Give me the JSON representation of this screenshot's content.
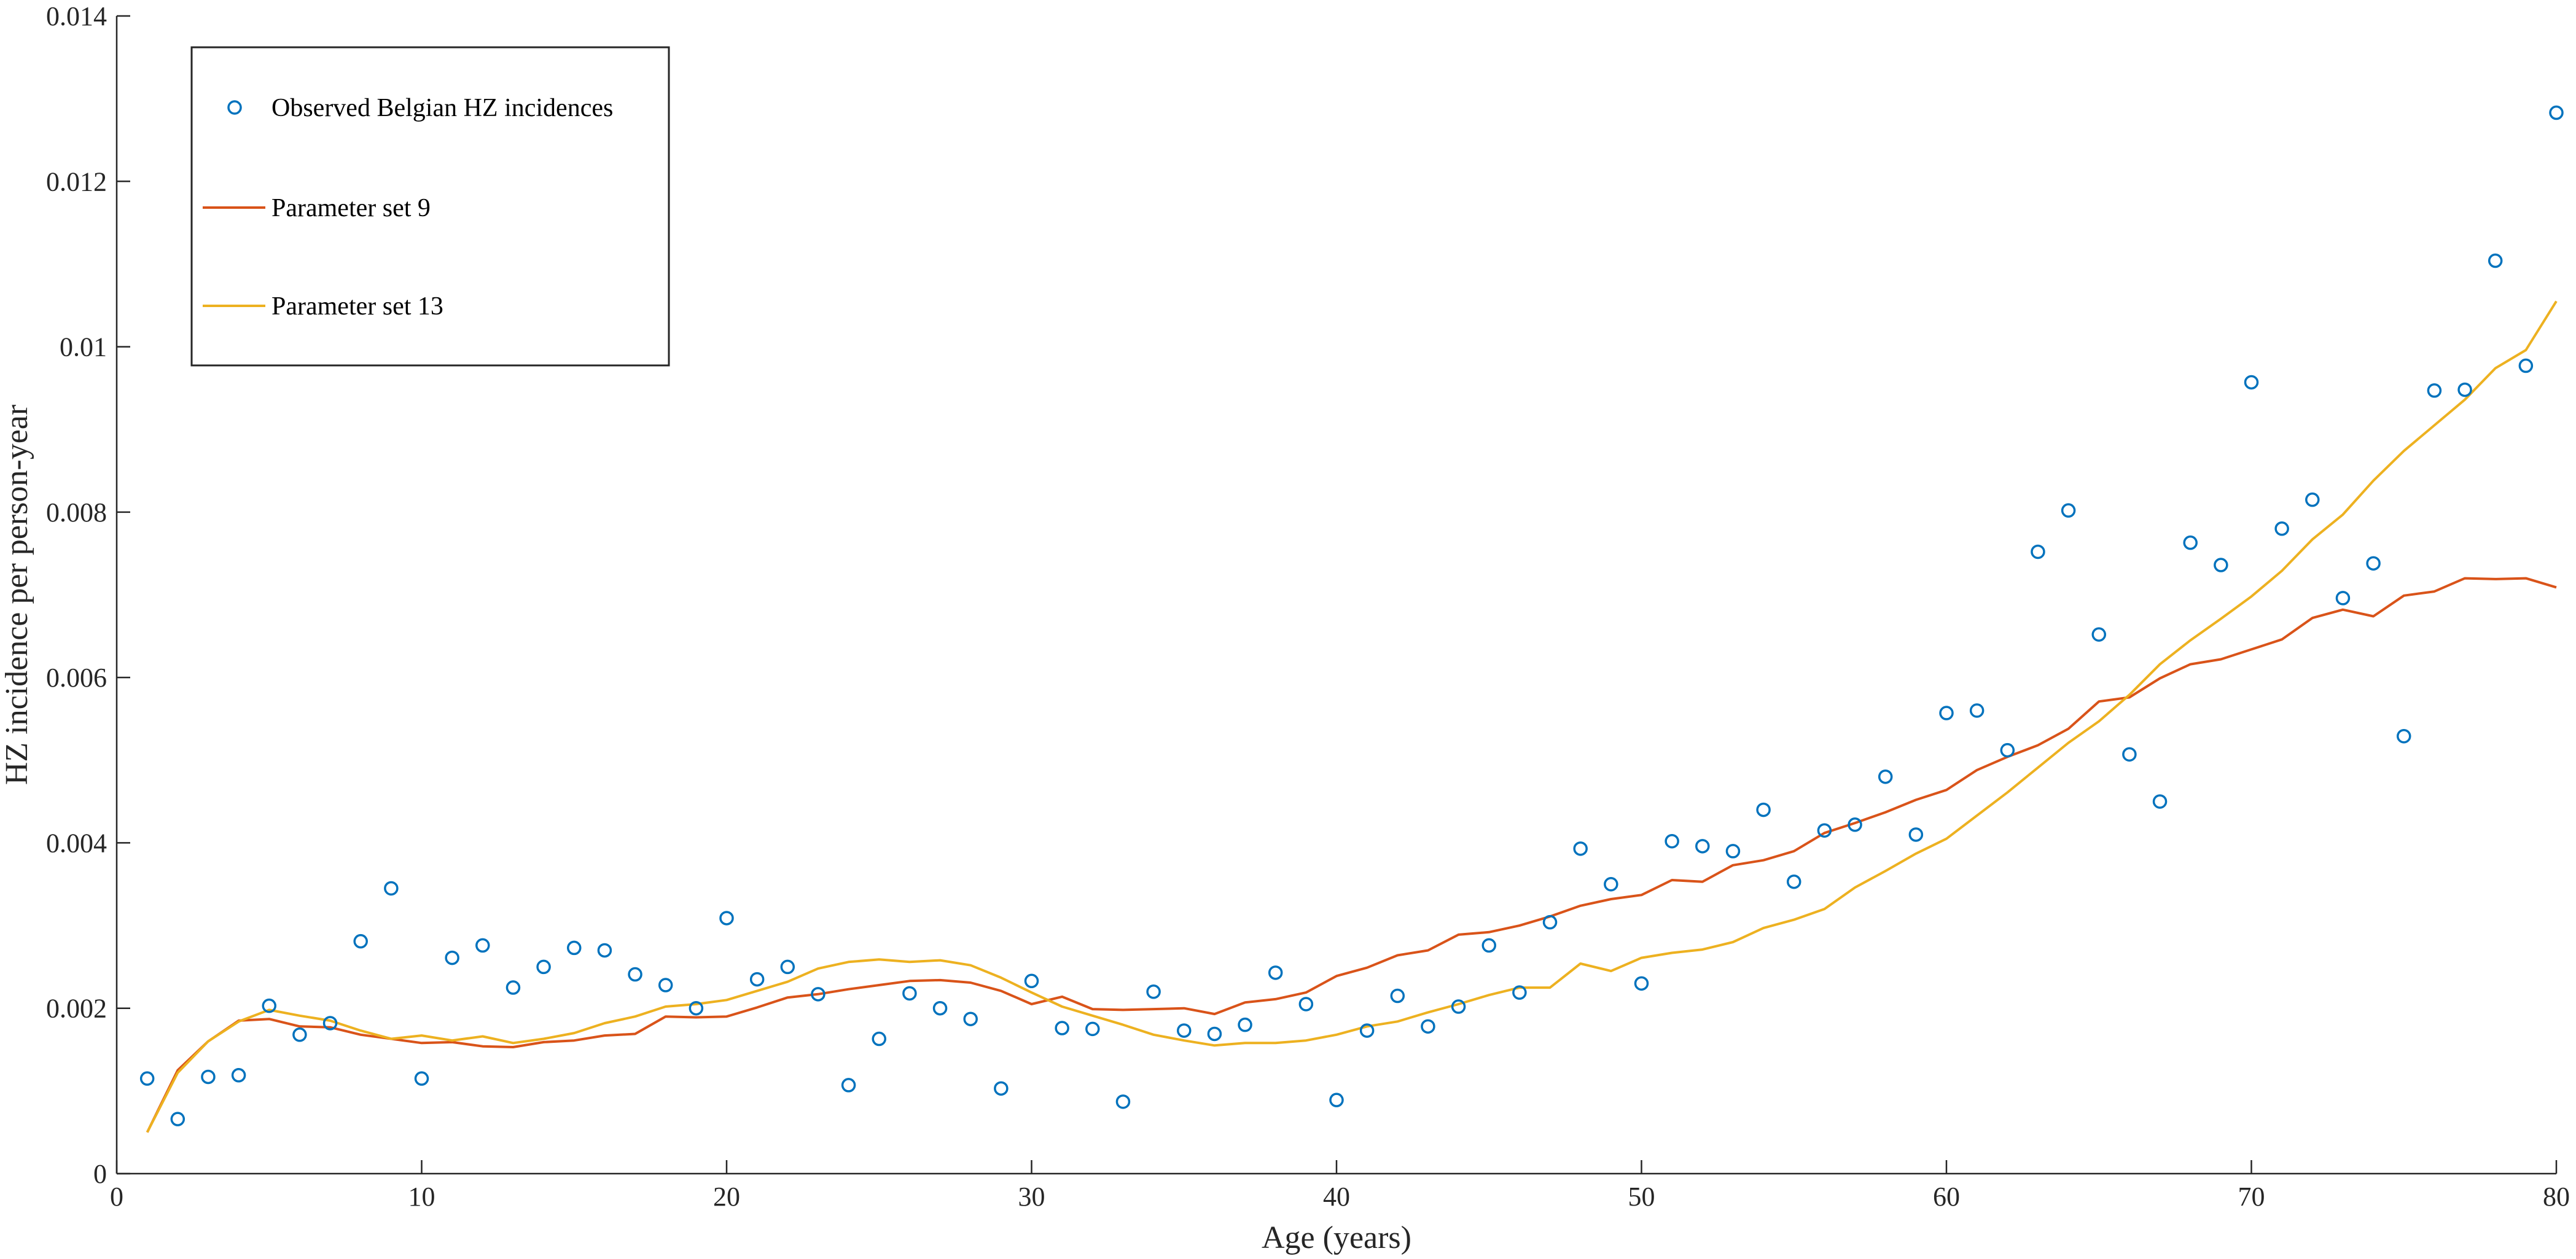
{
  "chart_data": {
    "type": "line",
    "xlabel": "Age (years)",
    "ylabel": "HZ incidence per person-year",
    "xlim": [
      0,
      80
    ],
    "ylim": [
      0,
      0.014
    ],
    "x_ticks": [
      0,
      10,
      20,
      30,
      40,
      50,
      60,
      70,
      80
    ],
    "x_tick_labels": [
      "0",
      "10",
      "20",
      "30",
      "40",
      "50",
      "60",
      "70",
      "80"
    ],
    "y_ticks": [
      0,
      0.002,
      0.004,
      0.006,
      0.008,
      0.01,
      0.012,
      0.014
    ],
    "y_tick_labels": [
      "0",
      "0.002",
      "0.004",
      "0.006",
      "0.008",
      "0.01",
      "0.012",
      "0.014"
    ],
    "grid": false,
    "legend_position": "top-left",
    "series": [
      {
        "name": "Observed Belgian HZ incidences",
        "kind": "scatter",
        "marker": "circle",
        "color": "#0072BD",
        "x": [
          1,
          2,
          3,
          4,
          5,
          6,
          7,
          8,
          9,
          10,
          11,
          12,
          13,
          14,
          15,
          16,
          17,
          18,
          19,
          20,
          21,
          22,
          23,
          24,
          25,
          26,
          27,
          28,
          29,
          30,
          31,
          32,
          33,
          34,
          35,
          36,
          37,
          38,
          39,
          40,
          41,
          42,
          43,
          44,
          45,
          46,
          47,
          48,
          49,
          50,
          51,
          52,
          53,
          54,
          55,
          56,
          57,
          58,
          59,
          60,
          61,
          62,
          63,
          64,
          65,
          66,
          67,
          68,
          69,
          70,
          71,
          72,
          73,
          74,
          75,
          76,
          77,
          78,
          79,
          80
        ],
        "y": [
          0.00115,
          0.00066,
          0.00117,
          0.00119,
          0.00203,
          0.00168,
          0.00182,
          0.00281,
          0.00345,
          0.00115,
          0.00261,
          0.00276,
          0.00225,
          0.0025,
          0.00273,
          0.0027,
          0.00241,
          0.00228,
          0.002,
          0.00309,
          0.00235,
          0.0025,
          0.00217,
          0.00107,
          0.00163,
          0.00218,
          0.002,
          0.00187,
          0.00103,
          0.00233,
          0.00176,
          0.00175,
          0.00087,
          0.0022,
          0.00173,
          0.00169,
          0.0018,
          0.00243,
          0.00205,
          0.00089,
          0.00173,
          0.00215,
          0.00178,
          0.00202,
          0.00276,
          0.00219,
          0.00304,
          0.00393,
          0.0035,
          0.0023,
          0.00402,
          0.00396,
          0.0039,
          0.0044,
          0.00353,
          0.00415,
          0.00422,
          0.0048,
          0.0041,
          0.00557,
          0.0056,
          0.00512,
          0.00752,
          0.00802,
          0.00652,
          0.00507,
          0.0045,
          0.00763,
          0.00736,
          0.00957,
          0.0078,
          0.00815,
          0.00696,
          0.00738,
          0.00529,
          0.00947,
          0.00948,
          0.01104,
          0.00977,
          0.01283
        ]
      },
      {
        "name": "Parameter set 9",
        "kind": "line",
        "color": "#D95319",
        "x": [
          1,
          2,
          3,
          4,
          5,
          6,
          7,
          8,
          9,
          10,
          11,
          12,
          13,
          14,
          15,
          16,
          17,
          18,
          19,
          20,
          21,
          22,
          23,
          24,
          25,
          26,
          27,
          28,
          29,
          30,
          31,
          32,
          33,
          34,
          35,
          36,
          37,
          38,
          39,
          40,
          41,
          42,
          43,
          44,
          45,
          46,
          47,
          48,
          49,
          50,
          51,
          52,
          53,
          54,
          55,
          56,
          57,
          58,
          59,
          60,
          61,
          62,
          63,
          64,
          65,
          66,
          67,
          68,
          69,
          70,
          71,
          72,
          73,
          74,
          75,
          76,
          77,
          78,
          79,
          80
        ],
        "y": [
          0.0005,
          0.00125,
          0.0016,
          0.00185,
          0.00187,
          0.00178,
          0.00177,
          0.00168,
          0.00163,
          0.00158,
          0.00159,
          0.00154,
          0.00153,
          0.00159,
          0.00161,
          0.00167,
          0.00169,
          0.0019,
          0.00189,
          0.0019,
          0.00201,
          0.00213,
          0.00217,
          0.00223,
          0.00228,
          0.00233,
          0.00234,
          0.00231,
          0.00221,
          0.00205,
          0.00214,
          0.00199,
          0.00198,
          0.00199,
          0.002,
          0.00193,
          0.00207,
          0.00211,
          0.00219,
          0.00239,
          0.00249,
          0.00264,
          0.0027,
          0.00289,
          0.00292,
          0.003,
          0.00311,
          0.00324,
          0.00332,
          0.00337,
          0.00355,
          0.00353,
          0.00373,
          0.00379,
          0.0039,
          0.00412,
          0.00424,
          0.00437,
          0.00452,
          0.00464,
          0.00488,
          0.00504,
          0.00518,
          0.00538,
          0.00571,
          0.00576,
          0.00599,
          0.00616,
          0.00622,
          0.00634,
          0.00646,
          0.00672,
          0.00682,
          0.00674,
          0.00699,
          0.00704,
          0.0072,
          0.00719,
          0.0072,
          0.00709
        ]
      },
      {
        "name": "Parameter set 13",
        "kind": "line",
        "color": "#EDB120",
        "x": [
          1,
          2,
          3,
          4,
          5,
          6,
          7,
          8,
          9,
          10,
          11,
          12,
          13,
          14,
          15,
          16,
          17,
          18,
          19,
          20,
          21,
          22,
          23,
          24,
          25,
          26,
          27,
          28,
          29,
          30,
          31,
          32,
          33,
          34,
          35,
          36,
          37,
          38,
          39,
          40,
          41,
          42,
          43,
          44,
          45,
          46,
          47,
          48,
          49,
          50,
          51,
          52,
          53,
          54,
          55,
          56,
          57,
          58,
          59,
          60,
          61,
          62,
          63,
          64,
          65,
          66,
          67,
          68,
          69,
          70,
          71,
          72,
          73,
          74,
          75,
          76,
          77,
          78,
          79,
          80
        ],
        "y": [
          0.0005,
          0.00122,
          0.0016,
          0.00184,
          0.00198,
          0.00191,
          0.00185,
          0.00173,
          0.00163,
          0.00167,
          0.00161,
          0.00166,
          0.00158,
          0.00163,
          0.0017,
          0.00182,
          0.0019,
          0.00202,
          0.00205,
          0.0021,
          0.00221,
          0.00232,
          0.00248,
          0.00256,
          0.00259,
          0.00256,
          0.00258,
          0.00252,
          0.00237,
          0.00219,
          0.00202,
          0.00191,
          0.0018,
          0.00168,
          0.00161,
          0.00155,
          0.00158,
          0.00158,
          0.00161,
          0.00168,
          0.00178,
          0.00184,
          0.00195,
          0.00205,
          0.00216,
          0.00225,
          0.00225,
          0.00254,
          0.00245,
          0.00261,
          0.00267,
          0.00271,
          0.0028,
          0.00297,
          0.00307,
          0.0032,
          0.00346,
          0.00366,
          0.00387,
          0.00405,
          0.00433,
          0.00461,
          0.00491,
          0.00521,
          0.00547,
          0.00579,
          0.00616,
          0.00645,
          0.00671,
          0.00698,
          0.00729,
          0.00767,
          0.00797,
          0.00838,
          0.00874,
          0.00905,
          0.00936,
          0.00974,
          0.00996,
          0.01055
        ]
      }
    ]
  }
}
